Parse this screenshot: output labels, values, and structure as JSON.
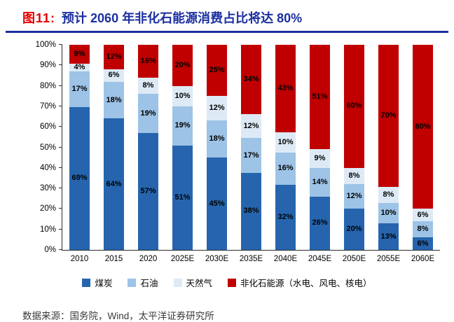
{
  "header": {
    "figure_label": "图11:",
    "title": "预计 2060 年非化石能源消费占比将达 80%"
  },
  "footer": {
    "source": "数据来源：国务院，Wind，太平洋证券研究所"
  },
  "colors": {
    "coal": "#2665AE",
    "oil": "#9DC3E6",
    "gas": "#DDEAF6",
    "nonfossil": "#C00000",
    "title_blue": "#1B2FA0",
    "title_red": "#E60000"
  },
  "chart_data": {
    "type": "bar",
    "stacked": true,
    "percent_stacked": true,
    "title": "预计 2060 年非化石能源消费占比将达 80%",
    "categories": [
      "2010",
      "2015",
      "2020",
      "2025E",
      "2030E",
      "2035E",
      "2040E",
      "2045E",
      "2050E",
      "2055E",
      "2060E"
    ],
    "series": [
      {
        "name": "煤炭",
        "color_key": "coal",
        "values": [
          69,
          64,
          57,
          51,
          45,
          38,
          32,
          26,
          20,
          13,
          6
        ]
      },
      {
        "name": "石油",
        "color_key": "oil",
        "values": [
          17,
          18,
          19,
          19,
          18,
          17,
          16,
          14,
          12,
          10,
          8
        ]
      },
      {
        "name": "天然气",
        "color_key": "gas",
        "values": [
          4,
          6,
          8,
          10,
          12,
          12,
          10,
          9,
          8,
          8,
          6
        ]
      },
      {
        "name": "非化石能源（水电、风电、核电）",
        "color_key": "nonfossil",
        "values": [
          9,
          12,
          16,
          20,
          25,
          34,
          43,
          51,
          60,
          70,
          80
        ]
      }
    ],
    "xlabel": "",
    "ylabel": "",
    "unit": "%",
    "ylim": [
      0,
      100
    ],
    "yticks": [
      "0%",
      "10%",
      "20%",
      "30%",
      "40%",
      "50%",
      "60%",
      "70%",
      "80%",
      "90%",
      "100%"
    ],
    "grid": false,
    "legend_position": "bottom"
  }
}
